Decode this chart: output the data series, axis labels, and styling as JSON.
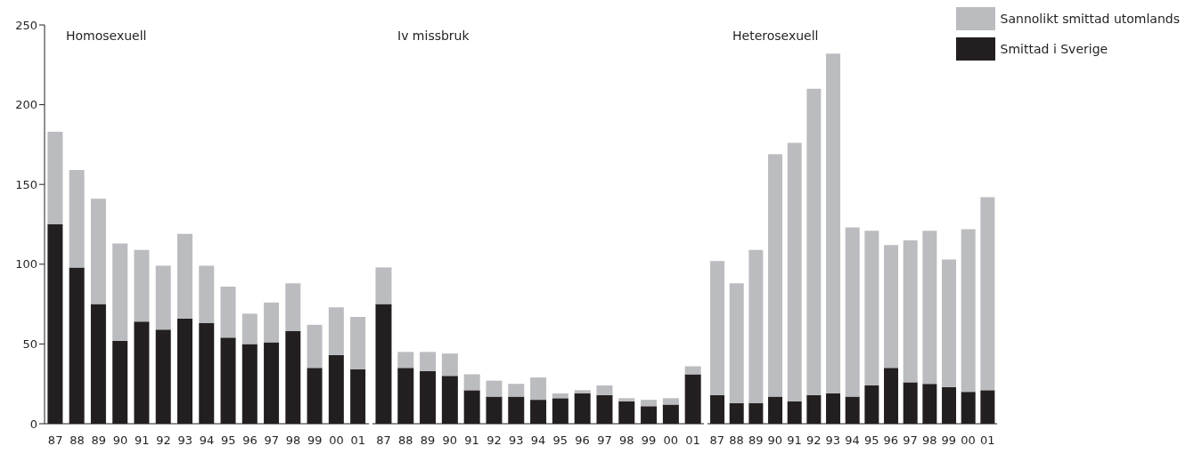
{
  "chart_data": [
    {
      "type": "bar",
      "title": "Homosexuell",
      "stacked": true,
      "categories": [
        "87",
        "88",
        "89",
        "90",
        "91",
        "92",
        "93",
        "94",
        "95",
        "96",
        "97",
        "98",
        "99",
        "00",
        "01"
      ],
      "series": [
        {
          "color": "#231f20",
          "values": [
            125,
            98,
            75,
            52,
            64,
            59,
            66,
            63,
            54,
            50,
            51,
            58,
            35,
            43,
            34
          ]
        },
        {
          "color": "#bbbcbf",
          "values": [
            58,
            61,
            66,
            61,
            45,
            40,
            53,
            36,
            32,
            19,
            25,
            30,
            27,
            30,
            33
          ]
        }
      ],
      "ylim": [
        0,
        250
      ],
      "yticks": [
        0,
        50,
        100,
        150,
        200,
        250
      ]
    },
    {
      "type": "bar",
      "title": "Iv missbruk",
      "stacked": true,
      "categories": [
        "87",
        "88",
        "89",
        "90",
        "91",
        "92",
        "93",
        "94",
        "95",
        "96",
        "97",
        "98",
        "99",
        "00",
        "01"
      ],
      "series": [
        {
          "color": "#231f20",
          "values": [
            75,
            35,
            33,
            30,
            21,
            17,
            17,
            15,
            16,
            19,
            18,
            14,
            11,
            12,
            31
          ]
        },
        {
          "color": "#bbbcbf",
          "values": [
            23,
            10,
            12,
            14,
            10,
            10,
            8,
            14,
            3,
            2,
            6,
            2,
            4,
            4,
            5
          ]
        }
      ],
      "ylim": [
        0,
        250
      ],
      "tick_labels": "x"
    },
    {
      "type": "bar",
      "title": "Heterosexuell",
      "stacked": true,
      "categories": [
        "87",
        "88",
        "89",
        "90",
        "91",
        "92",
        "93",
        "94",
        "95",
        "96",
        "97",
        "98",
        "99",
        "00",
        "01"
      ],
      "series": [
        {
          "name": "Smittad i Sverige",
          "color": "#231f20",
          "values": [
            18,
            13,
            13,
            17,
            14,
            18,
            19,
            17,
            24,
            35,
            26,
            25,
            23,
            20,
            21
          ]
        },
        {
          "name": "Sannolikt smittad utomlands",
          "color": "#bbbcbf",
          "values": [
            84,
            75,
            96,
            152,
            162,
            192,
            213,
            106,
            97,
            77,
            89,
            96,
            80,
            102,
            121
          ]
        }
      ],
      "ylim": [
        0,
        250
      ],
      "tick_labels": "x",
      "legend": "top right"
    }
  ]
}
